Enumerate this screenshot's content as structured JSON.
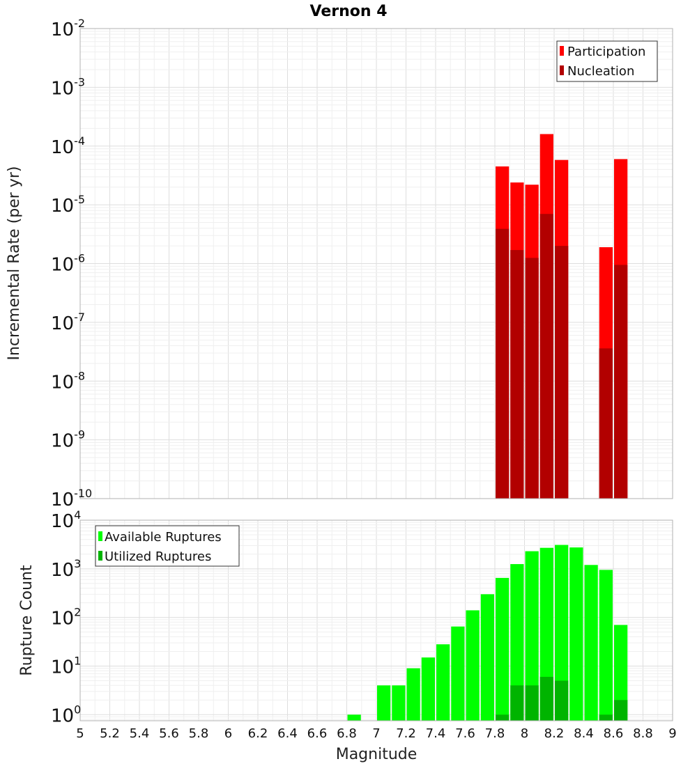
{
  "title": "Vernon 4",
  "colors": {
    "participation": "#ff0000",
    "nucleation": "#b20000",
    "available": "#00ff00",
    "utilized": "#00b400"
  },
  "chart_data": [
    {
      "type": "bar",
      "scale": "log",
      "ylabel": "Incremental Rate (per yr)",
      "xlabel": "",
      "xlim": [
        5,
        9
      ],
      "ylim": [
        1e-10,
        0.01
      ],
      "y_tick_exponents": [
        "-10",
        "-9",
        "-8",
        "-7",
        "-6",
        "-5",
        "-4",
        "-3",
        "-2"
      ],
      "legend": [
        "Participation",
        "Nucleation"
      ],
      "legend_position": "top-right",
      "x": [
        7.85,
        7.95,
        8.05,
        8.15,
        8.25,
        8.55,
        8.65
      ],
      "series": [
        {
          "name": "Participation",
          "values": [
            4.5e-05,
            2.4e-05,
            2.2e-05,
            0.00016,
            5.8e-05,
            1.9e-06,
            6e-05
          ]
        },
        {
          "name": "Nucleation",
          "values": [
            3.9e-06,
            1.7e-06,
            1.25e-06,
            7e-06,
            2e-06,
            3.6e-08,
            9.5e-07
          ]
        }
      ]
    },
    {
      "type": "bar",
      "scale": "log",
      "ylabel": "Rupture Count",
      "xlabel": "Magnitude",
      "xlim": [
        5,
        9
      ],
      "ylim": [
        0.75,
        10000
      ],
      "y_tick_exponents": [
        "0",
        "1",
        "2",
        "3",
        "4"
      ],
      "x_ticks": [
        "5",
        "5.2",
        "5.4",
        "5.6",
        "5.8",
        "6",
        "6.2",
        "6.4",
        "6.6",
        "6.8",
        "7",
        "7.2",
        "7.4",
        "7.6",
        "7.8",
        "8",
        "8.2",
        "8.4",
        "8.6",
        "8.8",
        "9"
      ],
      "legend": [
        "Available Ruptures",
        "Utilized Ruptures"
      ],
      "legend_position": "top-left",
      "x": [
        6.85,
        7.05,
        7.15,
        7.25,
        7.35,
        7.45,
        7.55,
        7.65,
        7.75,
        7.85,
        7.95,
        8.05,
        8.15,
        8.25,
        8.35,
        8.45,
        8.55,
        8.65
      ],
      "series": [
        {
          "name": "Available Ruptures",
          "values": [
            1,
            4,
            4,
            9,
            15,
            28,
            65,
            140,
            300,
            650,
            1250,
            2300,
            2700,
            3100,
            2750,
            1200,
            950,
            70
          ]
        },
        {
          "name": "Utilized Ruptures",
          "values": [
            0,
            0,
            0,
            0,
            0,
            0,
            0,
            0,
            0,
            1,
            4,
            4,
            6,
            5,
            0,
            0,
            1,
            2
          ]
        }
      ]
    }
  ]
}
